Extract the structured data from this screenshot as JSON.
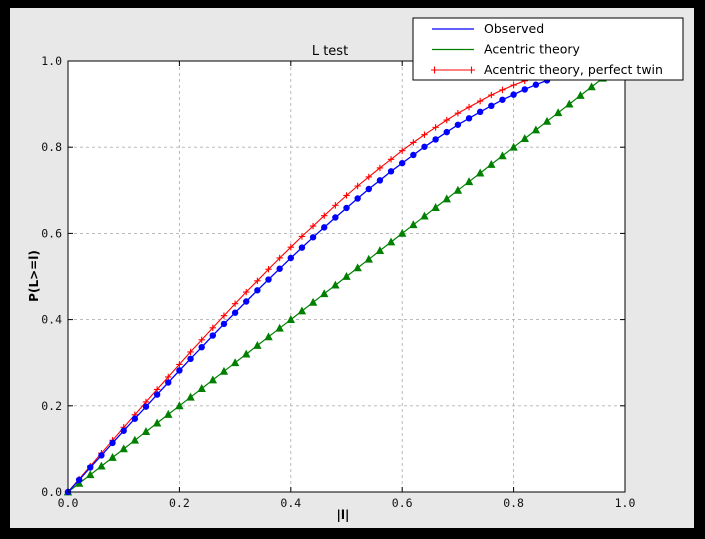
{
  "figure": {
    "title": "L test",
    "xlabel": "|l|",
    "ylabel": "P(L>=l)"
  },
  "chart_data": {
    "type": "line",
    "title": "L test",
    "xlabel": "|l|",
    "ylabel": "P(L>=l)",
    "xlim": [
      0,
      1
    ],
    "ylim": [
      0,
      1
    ],
    "grid": {
      "show": true,
      "style": "dashed",
      "positions": [
        0.2,
        0.4,
        0.6,
        0.8
      ]
    },
    "xticks": {
      "values": [
        0,
        0.2,
        0.4,
        0.6,
        0.8,
        1.0
      ],
      "labels": [
        "0.0",
        "0.2",
        "0.4",
        "0.6",
        "0.8",
        "1.0"
      ]
    },
    "yticks": {
      "values": [
        0,
        0.2,
        0.4,
        0.6,
        0.8,
        1.0
      ],
      "labels": [
        "0.0",
        "0.2",
        "0.4",
        "0.6",
        "0.8",
        "1.0"
      ]
    },
    "legend": {
      "position": "upper right"
    },
    "x": [
      0.0,
      0.02,
      0.04,
      0.06,
      0.08,
      0.1,
      0.12,
      0.14,
      0.16,
      0.18,
      0.2,
      0.22,
      0.24,
      0.26,
      0.28,
      0.3,
      0.32,
      0.34,
      0.36,
      0.38,
      0.4,
      0.42,
      0.44,
      0.46,
      0.48,
      0.5,
      0.52,
      0.54,
      0.56,
      0.58,
      0.6,
      0.62,
      0.64,
      0.66,
      0.68,
      0.7,
      0.72,
      0.74,
      0.76,
      0.78,
      0.8,
      0.82,
      0.84,
      0.86,
      0.88,
      0.9,
      0.92,
      0.94,
      0.96,
      0.98,
      1.0
    ],
    "series": [
      {
        "name": "Observed",
        "color": "#0000ff",
        "marker": "circle",
        "line_width": 1.3,
        "values": [
          0.0,
          0.028,
          0.057,
          0.085,
          0.114,
          0.142,
          0.17,
          0.198,
          0.226,
          0.254,
          0.282,
          0.309,
          0.336,
          0.363,
          0.39,
          0.416,
          0.442,
          0.468,
          0.493,
          0.518,
          0.543,
          0.567,
          0.591,
          0.614,
          0.637,
          0.659,
          0.681,
          0.703,
          0.723,
          0.744,
          0.763,
          0.782,
          0.801,
          0.818,
          0.835,
          0.852,
          0.867,
          0.882,
          0.896,
          0.91,
          0.922,
          0.934,
          0.945,
          0.955,
          0.964,
          0.973,
          0.98,
          0.987,
          0.992,
          0.996,
          1.0
        ]
      },
      {
        "name": "Acentric theory",
        "color": "#008000",
        "marker": "triangle-up",
        "line_width": 1.2,
        "values": [
          0.0,
          0.02,
          0.04,
          0.06,
          0.08,
          0.1,
          0.12,
          0.14,
          0.16,
          0.18,
          0.2,
          0.22,
          0.24,
          0.26,
          0.28,
          0.3,
          0.32,
          0.34,
          0.36,
          0.38,
          0.4,
          0.42,
          0.44,
          0.46,
          0.48,
          0.5,
          0.52,
          0.54,
          0.56,
          0.58,
          0.6,
          0.62,
          0.64,
          0.66,
          0.68,
          0.7,
          0.72,
          0.74,
          0.76,
          0.78,
          0.8,
          0.82,
          0.84,
          0.86,
          0.88,
          0.9,
          0.92,
          0.94,
          0.96,
          0.98,
          1.0
        ]
      },
      {
        "name": "Acentric theory, perfect twin",
        "color": "#ff0000",
        "marker": "plus",
        "line_width": 1.1,
        "values": [
          0.0,
          0.03,
          0.06,
          0.09,
          0.12,
          0.15,
          0.179,
          0.209,
          0.238,
          0.267,
          0.296,
          0.325,
          0.353,
          0.381,
          0.409,
          0.437,
          0.464,
          0.49,
          0.517,
          0.543,
          0.568,
          0.593,
          0.617,
          0.641,
          0.665,
          0.688,
          0.71,
          0.731,
          0.752,
          0.772,
          0.792,
          0.811,
          0.829,
          0.846,
          0.863,
          0.879,
          0.893,
          0.907,
          0.921,
          0.933,
          0.944,
          0.954,
          0.964,
          0.972,
          0.979,
          0.986,
          0.991,
          0.995,
          0.998,
          0.999,
          1.0
        ]
      }
    ]
  }
}
